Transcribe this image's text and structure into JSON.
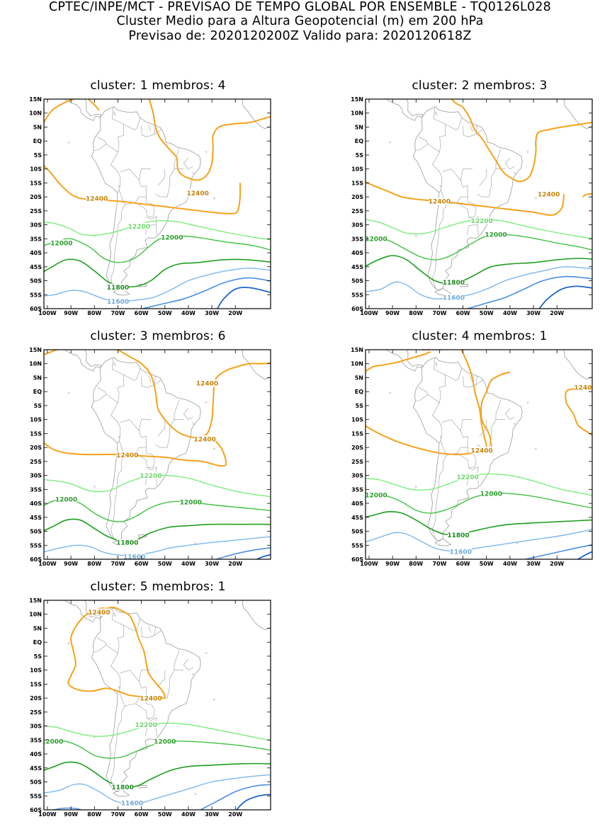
{
  "header": {
    "line1": "CPTEC/INPE/MCT - PREVISAO DE TEMPO GLOBAL POR ENSEMBLE - TQ0126L028",
    "line2": "Cluster Medio para a Altura Geopotencial (m) em 200 hPa",
    "line3": "Previsao de: 2020120200Z   Valido para: 2020120618Z"
  },
  "axes": {
    "lat_labels": [
      "15N",
      "10N",
      "5N",
      "EQ",
      "5S",
      "10S",
      "15S",
      "20S",
      "25S",
      "30S",
      "35S",
      "40S",
      "45S",
      "50S",
      "55S",
      "60S"
    ],
    "lon_labels": [
      "100W",
      "90W",
      "80W",
      "70W",
      "60W",
      "50W",
      "40W",
      "30W",
      "20W"
    ]
  },
  "colors": {
    "c12400": "#f5a21a",
    "c12200": "#7aee7a",
    "c12000": "#3ec23e",
    "c11800": "#1e9e1e",
    "c11600": "#7bb8ee",
    "c11400": "#4a90e0",
    "c11200": "#1f63c8",
    "land": "#9a9a9a"
  },
  "panels": [
    {
      "title": "cluster: 1   membros: 4",
      "labels": {
        "a": "12400",
        "b": "12400",
        "c": "12200",
        "d": "12000",
        "e": "12000",
        "f": "11800",
        "g": "11600"
      }
    },
    {
      "title": "cluster: 2   membros: 3",
      "labels": {
        "a": "12400",
        "b": "12400",
        "c": "12200",
        "d": "12000",
        "e": "12000",
        "f": "11800",
        "g": "11600"
      }
    },
    {
      "title": "cluster: 3   membros: 6",
      "labels": {
        "a": "12400",
        "b": "12400",
        "h": "12400",
        "c": "12200",
        "d": "12000",
        "e": "12000",
        "f": "11800",
        "g": "11600"
      }
    },
    {
      "title": "cluster: 4   membros: 1",
      "labels": {
        "a": "12400",
        "b": "12400",
        "h": "12400",
        "c": "12200",
        "d": "12000",
        "e": "12000",
        "f": "11800",
        "g": "11600"
      }
    },
    {
      "title": "cluster: 5   membros: 1",
      "labels": {
        "a": "12400",
        "b": "12400",
        "c": "12200",
        "d": "12000",
        "e": "12000",
        "f": "11800",
        "g": "11600"
      }
    }
  ]
}
